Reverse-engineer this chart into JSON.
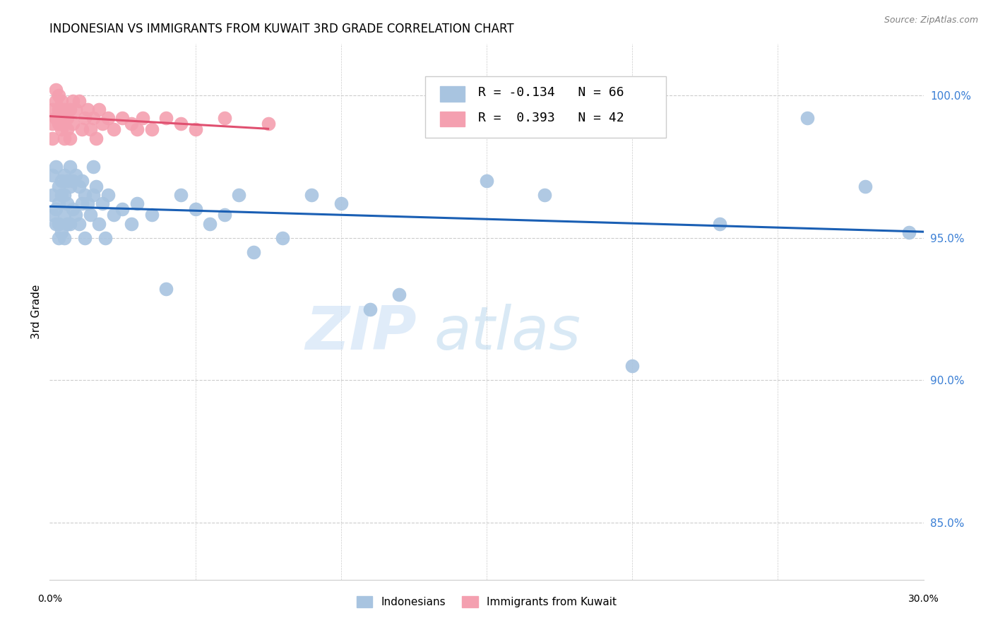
{
  "title": "INDONESIAN VS IMMIGRANTS FROM KUWAIT 3RD GRADE CORRELATION CHART",
  "source": "Source: ZipAtlas.com",
  "ylabel": "3rd Grade",
  "xlim": [
    0.0,
    0.3
  ],
  "ylim": [
    83.0,
    101.8
  ],
  "legend_r_blue": "-0.134",
  "legend_n_blue": "66",
  "legend_r_pink": "0.393",
  "legend_n_pink": "42",
  "blue_color": "#a8c4e0",
  "pink_color": "#f4a0b0",
  "trend_blue": "#1a5fb4",
  "trend_pink": "#e05070",
  "watermark_zip": "ZIP",
  "watermark_atlas": "atlas",
  "indonesians_x": [
    0.001,
    0.001,
    0.001,
    0.002,
    0.002,
    0.002,
    0.003,
    0.003,
    0.003,
    0.003,
    0.004,
    0.004,
    0.004,
    0.005,
    0.005,
    0.005,
    0.005,
    0.006,
    0.006,
    0.006,
    0.007,
    0.007,
    0.007,
    0.008,
    0.008,
    0.009,
    0.009,
    0.01,
    0.01,
    0.011,
    0.011,
    0.012,
    0.012,
    0.013,
    0.014,
    0.015,
    0.015,
    0.016,
    0.017,
    0.018,
    0.019,
    0.02,
    0.022,
    0.025,
    0.028,
    0.03,
    0.035,
    0.04,
    0.045,
    0.05,
    0.055,
    0.06,
    0.065,
    0.07,
    0.08,
    0.09,
    0.1,
    0.11,
    0.12,
    0.15,
    0.17,
    0.2,
    0.23,
    0.26,
    0.28,
    0.295
  ],
  "indonesians_y": [
    97.2,
    96.5,
    95.8,
    97.5,
    96.0,
    95.5,
    96.8,
    96.2,
    95.5,
    95.0,
    97.0,
    96.5,
    95.2,
    97.2,
    96.5,
    95.8,
    95.0,
    97.0,
    96.2,
    95.5,
    97.5,
    96.8,
    95.5,
    97.0,
    96.0,
    97.2,
    95.8,
    96.8,
    95.5,
    97.0,
    96.2,
    96.5,
    95.0,
    96.2,
    95.8,
    96.5,
    97.5,
    96.8,
    95.5,
    96.2,
    95.0,
    96.5,
    95.8,
    96.0,
    95.5,
    96.2,
    95.8,
    93.2,
    96.5,
    96.0,
    95.5,
    95.8,
    96.5,
    94.5,
    95.0,
    96.5,
    96.2,
    92.5,
    93.0,
    97.0,
    96.5,
    90.5,
    95.5,
    99.2,
    96.8,
    95.2
  ],
  "kuwait_x": [
    0.001,
    0.001,
    0.001,
    0.002,
    0.002,
    0.002,
    0.003,
    0.003,
    0.003,
    0.004,
    0.004,
    0.004,
    0.005,
    0.005,
    0.006,
    0.006,
    0.007,
    0.007,
    0.008,
    0.008,
    0.009,
    0.01,
    0.011,
    0.012,
    0.013,
    0.014,
    0.015,
    0.016,
    0.017,
    0.018,
    0.02,
    0.022,
    0.025,
    0.028,
    0.03,
    0.032,
    0.035,
    0.04,
    0.045,
    0.05,
    0.06,
    0.075
  ],
  "kuwait_y": [
    99.5,
    99.0,
    98.5,
    100.2,
    99.8,
    99.2,
    100.0,
    99.5,
    99.0,
    99.8,
    99.2,
    98.8,
    99.5,
    98.5,
    99.2,
    98.8,
    99.5,
    98.5,
    99.8,
    99.0,
    99.5,
    99.8,
    98.8,
    99.2,
    99.5,
    98.8,
    99.2,
    98.5,
    99.5,
    99.0,
    99.2,
    98.8,
    99.2,
    99.0,
    98.8,
    99.2,
    98.8,
    99.2,
    99.0,
    98.8,
    99.2,
    99.0
  ]
}
